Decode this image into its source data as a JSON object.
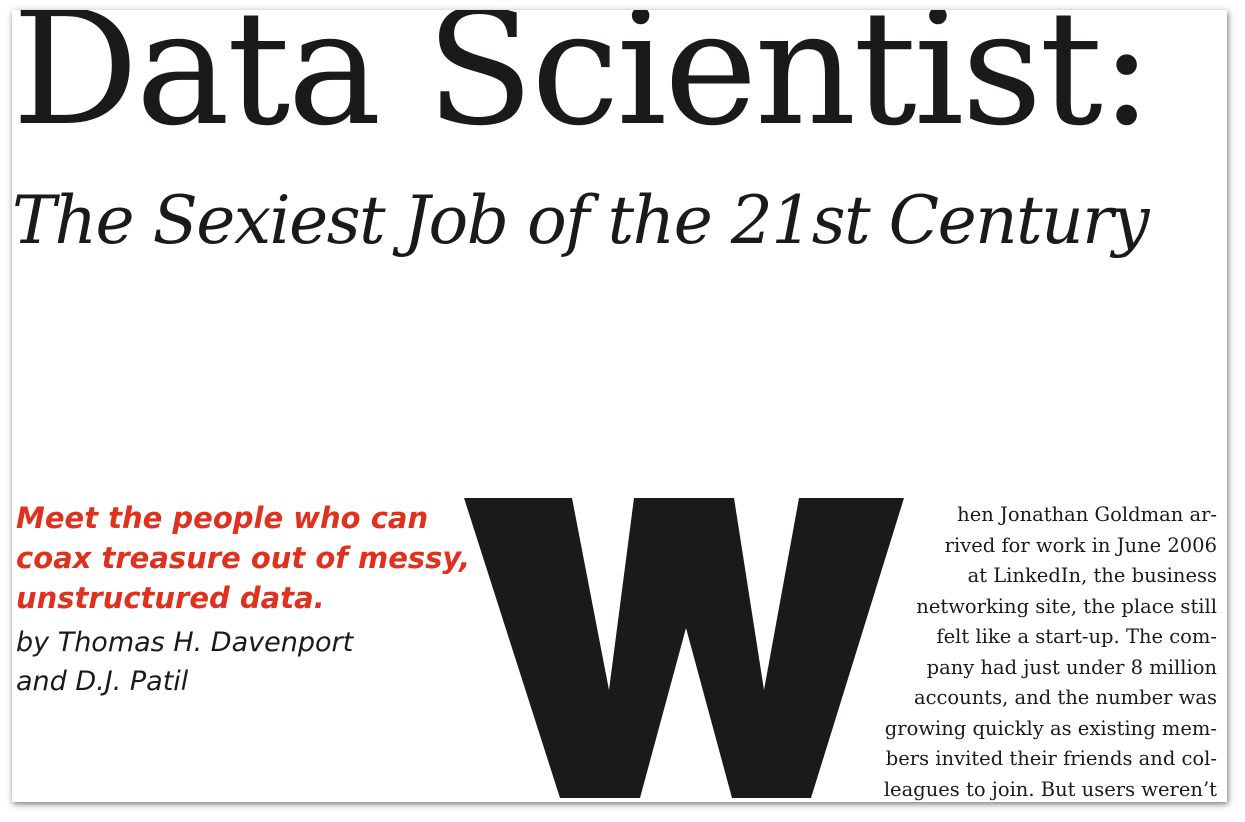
{
  "article": {
    "title": "Data Scientist:",
    "subtitle": "The Sexiest Job of the 21st Century",
    "deck": "Meet the people who can coax treasure out of messy, unstructured data.",
    "byline": {
      "line1": "by Thomas H. Davenport",
      "line2": "and D.J. Patil"
    },
    "drop_cap": "W",
    "body_lines": [
      "hen Jonathan Goldman ar-",
      "rived for work in June 2006",
      "at LinkedIn, the business",
      "networking site, the place still",
      "felt like a start-up. The com-",
      "pany had just under 8 million",
      "accounts, and the number was",
      "growing quickly as existing mem-",
      "bers invited their friends and col-",
      "leagues to join. But users weren’t"
    ]
  },
  "colors": {
    "text": "#1c1a18",
    "accent": "#e0301e",
    "background": "#ffffff"
  }
}
